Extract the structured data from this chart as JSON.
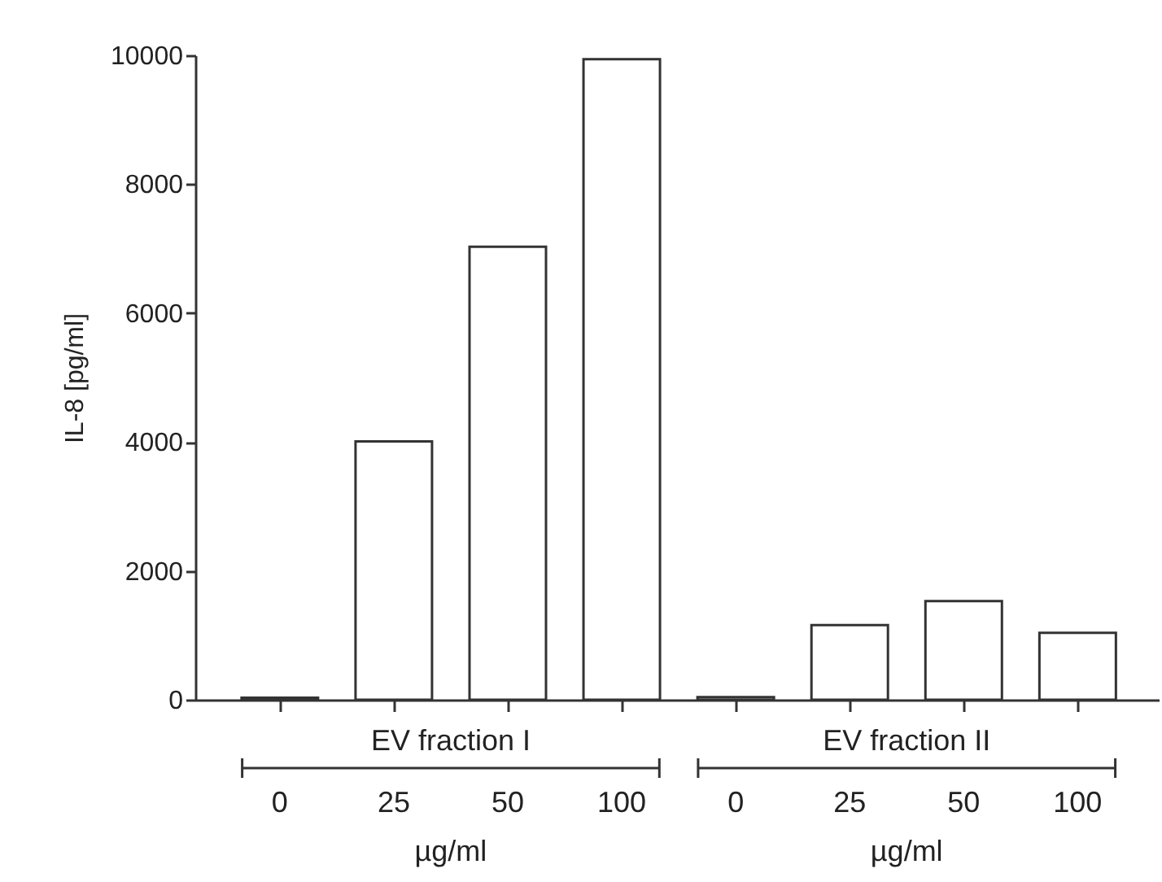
{
  "chart_data": {
    "type": "bar",
    "ylabel": "IL-8 [pg/ml]",
    "categories": [
      "0",
      "25",
      "50",
      "100",
      "0",
      "25",
      "50",
      "100"
    ],
    "series": [
      {
        "color": "#ffffff",
        "values": [
          30,
          4010,
          7030,
          9940,
          40,
          1160,
          1530,
          1040
        ]
      }
    ],
    "ylim": [
      0,
      10000
    ],
    "yticks": [
      0,
      2000,
      4000,
      6000,
      8000,
      10000
    ],
    "annotations": [
      "EV fraction I",
      "EV fraction II",
      "µg/ml",
      "µg/ml"
    ],
    "grid": false
  }
}
